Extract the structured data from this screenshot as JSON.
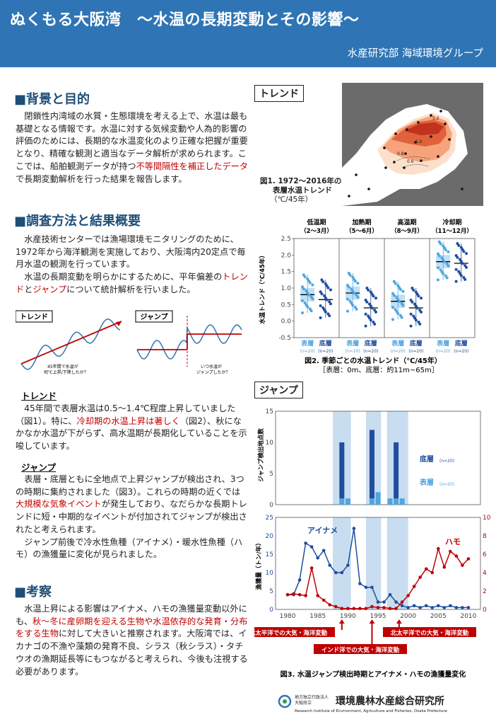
{
  "header": {
    "title": "ぬくもる大阪湾　～水温の長期変動とその影響～",
    "department": "水産研究部 海域環境グループ",
    "bg_color": "#2f75b5"
  },
  "sections": {
    "background": {
      "heading": "■背景と目的",
      "p1_a": "閉鎖性内湾域の水質・生態環境を考える上で、水温は最も基礎となる情報です。水温に対する気候変動や人為的影響の評価のためには、長期的な水温変化のより正確な把握が重要となり、精確な観測と適当なデータ解析が求められます。ここでは、船舶観測データが持つ",
      "p1_red": "不等間隔性を補正したデータ",
      "p1_b": "で長期変動解析を行った結果を報告します。"
    },
    "method": {
      "heading": "■調査方法と結果概要",
      "p1": "水産技術センターでは漁場環境モニタリングのために、1972年から海洋観測を実施しており、大阪湾内20定点で毎月水温の観測を行っています。",
      "p2_a": "水温の長期変動を明らかにするために、平年偏差の",
      "p2_red1": "トレンド",
      "p2_and": "と",
      "p2_red2": "ジャンプ",
      "p2_b": "について統計解析を行いました。"
    },
    "schematic": {
      "trend_tag": "トレンド",
      "jump_tag": "ジャンプ",
      "trend_note1": "45年間で水温が",
      "trend_note2": "何℃上昇/下降したか？",
      "jump_note1": "いつ水温が",
      "jump_note2": "ジャンプしたか？"
    },
    "trend": {
      "heading": "トレンド",
      "a": "45年間で表層水温は0.5～1.4℃程度上昇していました（図1）。特に、",
      "red": "冷却期の水温上昇は著しく",
      "b": "（図2）、秋になかなか水温が下がらず、高水温期が長期化していることを示唆しています。"
    },
    "jump": {
      "heading": "ジャンプ",
      "a": "表層・底層ともに全地点で上昇ジャンプが検出され、3つの時期に集約されました（図3）。これらの時期の近くでは",
      "red": "大規模な気象イベント",
      "b": "が発生しており、なだらかな長期トレンドに短・中期的なイベントが付加されてジャンプが検出されたと考えられます。",
      "p2": "ジャンプ前後で冷水性魚種（アイナメ）・暖水性魚種（ハモ）の漁獲量に変化が見られました。"
    },
    "discussion": {
      "heading": "■考察",
      "a": "水温上昇による影響はアイナメ、ハモの漁獲量変動以外にも、",
      "red": "秋～冬に産卵期を迎える生物や水温依存的な発育・分布をする生物",
      "b": "に対して大きいと推察されます。大阪湾では、イカナゴの不漁や藻類の発育不良、シラス（秋シラス）・タチウオの漁期延長等にもつながると考えられ、今後も注視する必要があります。"
    }
  },
  "figures": {
    "trend_tag": "トレンド",
    "fig1_caption": [
      "図1. 1972～2016年の",
      "表層水温トレンド",
      "（℃/45年）"
    ],
    "fig1_contours": [
      "1.2",
      "1.0",
      "0.8",
      "0.6"
    ],
    "fig2": {
      "periods": [
        {
          "name": "低温期",
          "months": "（2～3月）"
        },
        {
          "name": "加熱期",
          "months": "（5～6月）"
        },
        {
          "name": "高温期",
          "months": "（8～9月）"
        },
        {
          "name": "冷却期",
          "months": "（11～12月）"
        }
      ],
      "ylabel": "水温トレンド（℃/45年）",
      "yticks": [
        "2.5",
        "2.0",
        "1.5",
        "1.0",
        "0.5",
        "0.0",
        "-0.5"
      ],
      "surface_label": "表層",
      "bottom_label": "底層",
      "n_label": "(n=20)",
      "caption1": "図2. 季節ごとの水温トレンド（℃/45年）",
      "caption2": "［表層：0m、底層：約11m~65m］"
    },
    "jump_tag": "ジャンプ",
    "fig3": {
      "top_ylabel": "ジャンプ検出地点数",
      "top_yticks": [
        "15",
        "10",
        "5",
        "0"
      ],
      "bottom_label": "底層",
      "surface_label": "表層",
      "n_label": "(n=20)",
      "bottom_ylabel": "漁獲量（トン/年）",
      "left_yticks": [
        "25",
        "20",
        "15",
        "10",
        "5",
        "0"
      ],
      "right_yticks": [
        "10",
        "8",
        "6",
        "4",
        "2",
        "0"
      ],
      "xticks": [
        "1980",
        "1985",
        "1990",
        "1995",
        "2000",
        "2005",
        "2010"
      ],
      "ainame_label": "アイナメ",
      "hamo_label": "ハモ",
      "event1": "北太平洋での大気・海洋変動",
      "event2": "インド洋での大気・海洋変動",
      "event3": "北太平洋での大気・海洋変動",
      "caption": "図3. 水温ジャンプ検出時期とアイナメ・ハモの漁獲量変化"
    }
  },
  "chart_data": [
    {
      "type": "box",
      "title": "図2. 季節ごとの水温トレンド（℃/45年）",
      "ylabel": "水温トレンド（℃/45年）",
      "ylim": [
        -0.5,
        2.5
      ],
      "categories": [
        "低温期",
        "加熱期",
        "高温期",
        "冷却期"
      ],
      "series": [
        {
          "name": "表層",
          "median": [
            0.8,
            0.85,
            0.6,
            1.8
          ]
        },
        {
          "name": "底層",
          "median": [
            0.65,
            0.4,
            0.4,
            1.75
          ]
        }
      ]
    },
    {
      "type": "bar",
      "ylabel": "ジャンプ検出地点数",
      "ylim": [
        0,
        15
      ],
      "x": [
        1988,
        1989,
        1990,
        1993,
        1994,
        1995,
        1997,
        1998,
        1999
      ],
      "series": [
        {
          "name": "表層",
          "values": [
            0,
            1,
            1,
            0,
            1,
            2,
            1,
            1,
            1
          ]
        },
        {
          "name": "底層",
          "values": [
            0,
            9,
            0,
            0,
            11,
            0,
            0,
            9,
            0
          ]
        }
      ]
    },
    {
      "type": "line",
      "ylabel": "漁獲量（トン/年）",
      "xlim": [
        1980,
        2010
      ],
      "x": [
        1980,
        1981,
        1982,
        1983,
        1984,
        1985,
        1986,
        1987,
        1988,
        1989,
        1990,
        1991,
        1992,
        1993,
        1994,
        1995,
        1996,
        1997,
        1998,
        1999,
        2000,
        2001,
        2002,
        2003,
        2004,
        2005,
        2006,
        2007,
        2008,
        2009,
        2010
      ],
      "series": [
        {
          "name": "アイナメ",
          "axis": "left",
          "ylim": [
            0,
            25
          ],
          "values": [
            4,
            4,
            8,
            18,
            17,
            14,
            16,
            12,
            10,
            10,
            12,
            22,
            7,
            6,
            6,
            2,
            2,
            4,
            2,
            1,
            0.5,
            1,
            0.5,
            1,
            0.5,
            1,
            0.5,
            1,
            0.5,
            0.5,
            0.5
          ]
        },
        {
          "name": "ハモ",
          "axis": "right",
          "ylim": [
            0,
            10
          ],
          "values": [
            1.6,
            1.7,
            1.6,
            1.5,
            4.5,
            1.5,
            1,
            0.5,
            0.3,
            0.1,
            0.1,
            0.1,
            0.1,
            0.1,
            0.3,
            0.2,
            0.2,
            0.1,
            0.1,
            0.8,
            1.5,
            2.5,
            3.5,
            4.4,
            4,
            6.6,
            4.6,
            6.3,
            5.8,
            4.8,
            5.5
          ]
        }
      ]
    }
  ],
  "footer": {
    "org_small1": "地方独立行政法人",
    "org_small2": "大阪府立",
    "org_name": "環境農林水産総合研究所",
    "org_en": "Research Institute of Environment, Agriculture and Fisheries, Osaka Prefecture"
  },
  "colors": {
    "accent": "#2f75b5",
    "red": "#c00000",
    "surface": "#4ea6e0",
    "bottom": "#1f4e9e",
    "band": "#c9ddf0"
  }
}
